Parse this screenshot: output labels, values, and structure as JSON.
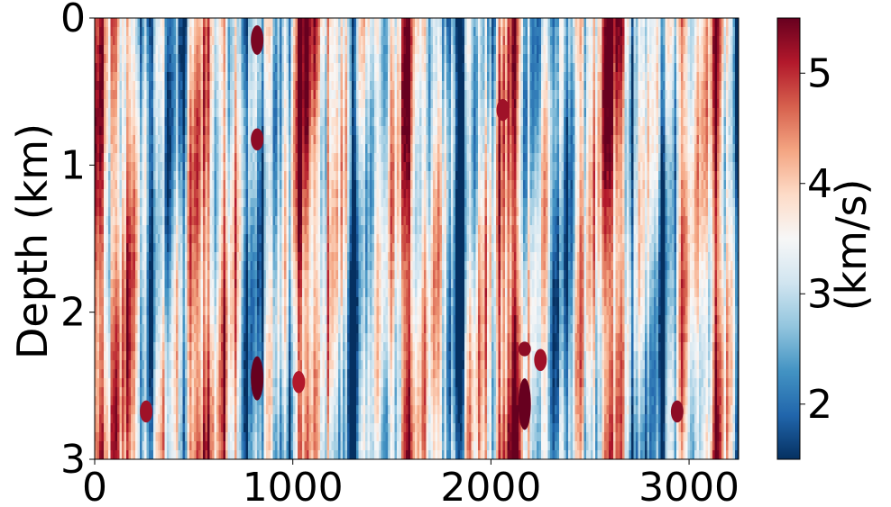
{
  "chart_data": {
    "type": "heatmap",
    "title": "",
    "xlabel": "",
    "ylabel": "Depth (km)",
    "xlim": [
      0,
      3250
    ],
    "ylim": [
      0,
      3
    ],
    "y_inverted": true,
    "x_ticks": [
      {
        "value": 0,
        "label": "0"
      },
      {
        "value": 1000,
        "label": "1000"
      },
      {
        "value": 2000,
        "label": "2000"
      },
      {
        "value": 3000,
        "label": "3000"
      }
    ],
    "y_ticks": [
      {
        "value": 0,
        "label": "0"
      },
      {
        "value": 1,
        "label": "1"
      },
      {
        "value": 2,
        "label": "2"
      },
      {
        "value": 3,
        "label": "3"
      }
    ],
    "colorbar": {
      "label": "(km/s)",
      "range": [
        1.5,
        5.5
      ],
      "colormap": "RdBu_r",
      "ticks": [
        {
          "value": 2,
          "label": "2"
        },
        {
          "value": 3,
          "label": "3"
        },
        {
          "value": 4,
          "label": "4"
        },
        {
          "value": 5,
          "label": "5"
        }
      ],
      "colors": [
        "#053061",
        "#2166ac",
        "#4393c3",
        "#92c5de",
        "#d1e5f0",
        "#f7f7f7",
        "#fddbc7",
        "#f4a582",
        "#d6604d",
        "#b2182b",
        "#67001f"
      ]
    },
    "grid": false,
    "description_values": {
      "features": [
        {
          "x_center": 820,
          "depth_from": 0.05,
          "depth_to": 0.25,
          "velocity": 5.4
        },
        {
          "x_center": 820,
          "depth_from": 0.75,
          "depth_to": 0.9,
          "velocity": 5.3
        },
        {
          "x_center": 820,
          "depth_from": 2.3,
          "depth_to": 2.6,
          "velocity": 5.5
        },
        {
          "x_center": 2170,
          "depth_from": 2.45,
          "depth_to": 2.8,
          "velocity": 5.5
        },
        {
          "x_center": 2060,
          "depth_from": 0.55,
          "depth_to": 0.7,
          "velocity": 5.2
        },
        {
          "x_center": 2940,
          "depth_from": 2.6,
          "depth_to": 2.75,
          "velocity": 5.3
        },
        {
          "x_center": 260,
          "depth_from": 2.6,
          "depth_to": 2.75,
          "velocity": 5.2
        },
        {
          "x_center": 2250,
          "depth_from": 2.25,
          "depth_to": 2.4,
          "velocity": 5.2
        },
        {
          "x_center": 2170,
          "depth_from": 2.2,
          "depth_to": 2.3,
          "velocity": 5.3
        },
        {
          "x_center": 1030,
          "depth_from": 2.4,
          "depth_to": 2.55,
          "velocity": 5.1
        }
      ]
    }
  }
}
